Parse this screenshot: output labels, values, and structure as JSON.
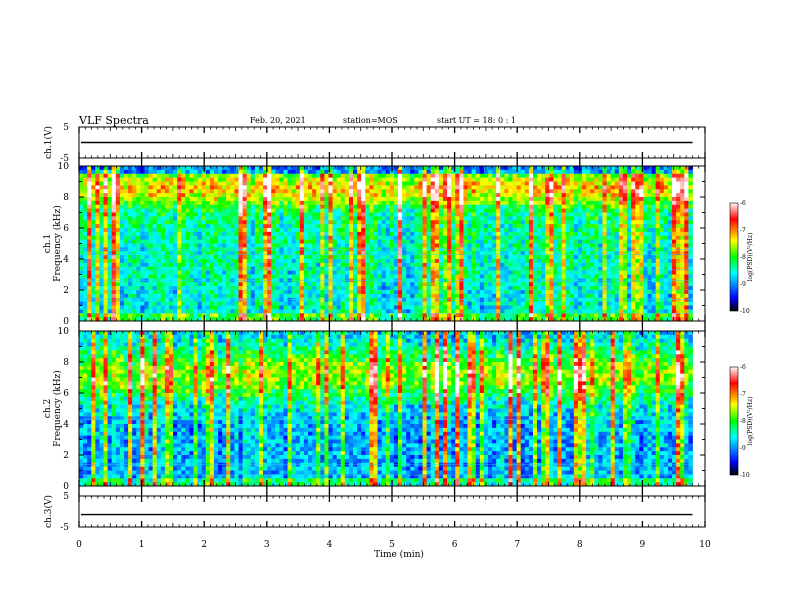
{
  "header": {
    "title": "VLF Spectra",
    "date": "Feb. 20, 2021",
    "station": "station=MOS",
    "start": "start  UT =   18: 0  : 1"
  },
  "chart_data": [
    {
      "type": "line",
      "panel": "ch1-waveform",
      "ylabel": "ch.1(V)",
      "ylim": [
        -5,
        5
      ],
      "y_ticks": [
        "5",
        "-5"
      ],
      "x_range_min": [
        0,
        10
      ],
      "data_end_min": 9.8,
      "level_V": 0
    },
    {
      "type": "heatmap",
      "panel": "ch1-spectrogram",
      "ylabel": "ch.1\nFrequency (kHz)",
      "ylim": [
        0,
        10
      ],
      "y_ticks": [
        "0",
        "2",
        "4",
        "6",
        "8",
        "10"
      ],
      "x_range_min": [
        0,
        10
      ],
      "data_end_min": 9.8,
      "colorbar": {
        "label": "log(PSD)(V²/Hz)",
        "range": [
          -10,
          -6
        ],
        "ticks": [
          "-6",
          "-7",
          "-8",
          "-9",
          "-10"
        ]
      }
    },
    {
      "type": "heatmap",
      "panel": "ch2-spectrogram",
      "ylabel": "ch.2\nFrequency (kHz)",
      "ylim": [
        0,
        10
      ],
      "y_ticks": [
        "0",
        "2",
        "4",
        "6",
        "8",
        "10"
      ],
      "x_range_min": [
        0,
        10
      ],
      "data_end_min": 9.8,
      "colorbar": {
        "label": "log(PSD)(V²/Hz)",
        "range": [
          -10,
          -6
        ],
        "ticks": [
          "-6",
          "-7",
          "-8",
          "-9",
          "-10"
        ]
      }
    },
    {
      "type": "line",
      "panel": "ch3-waveform",
      "ylabel": "ch.3(V)",
      "ylim": [
        -5,
        5
      ],
      "y_ticks": [
        "5",
        "-5"
      ],
      "x_range_min": [
        0,
        10
      ],
      "data_end_min": 9.8,
      "level_V": -1
    }
  ],
  "x_axis": {
    "label": "Time  (min)",
    "ticks": [
      "0",
      "1",
      "2",
      "3",
      "4",
      "5",
      "6",
      "7",
      "8",
      "9",
      "10"
    ]
  },
  "colors": {
    "background": "#ffffff",
    "axes": "#000000",
    "colormap": [
      "#000000",
      "#0000ff",
      "#00ffff",
      "#00ff00",
      "#ffff00",
      "#ff0000",
      "#ffffff"
    ]
  }
}
